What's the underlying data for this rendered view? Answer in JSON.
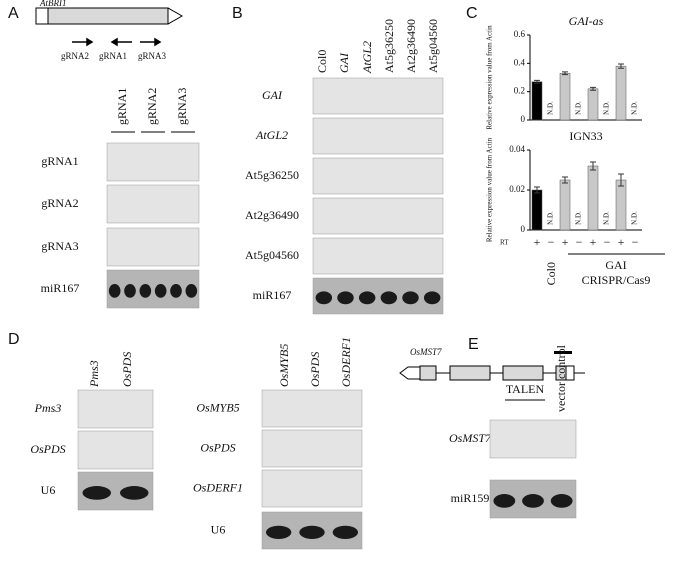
{
  "panels": {
    "A": {
      "label": "A",
      "gene": "AtBRI1",
      "grnas": [
        "gRNA2",
        "gRNA1",
        "gRNA3"
      ],
      "lanes": [
        "gRNA1",
        "gRNA2",
        "gRNA3"
      ],
      "rows": [
        "gRNA1",
        "gRNA2",
        "gRNA3",
        "miR167"
      ]
    },
    "B": {
      "label": "B",
      "lanes": [
        "Col0",
        "GAI",
        "AtGL2",
        "At5g36250",
        "At2g36490",
        "At5g04560"
      ],
      "rows": [
        "GAI",
        "AtGL2",
        "At5g36250",
        "At2g36490",
        "At5g04560",
        "miR167"
      ]
    },
    "C": {
      "label": "C",
      "ylabel": "Relative expression value from Actin",
      "chart_data": [
        {
          "type": "bar",
          "title": "GAI-as",
          "ylim": [
            0,
            0.6
          ],
          "yticks": [
            0,
            0.2,
            0.4,
            0.6
          ],
          "values": [
            0.27,
            null,
            0.33,
            null,
            0.22,
            null,
            0.38,
            null
          ],
          "value_labels": [
            null,
            "N.D.",
            null,
            "N.D.",
            null,
            "N.D.",
            null,
            "N.D."
          ],
          "errors": [
            0.01,
            null,
            0.01,
            null,
            0.01,
            null,
            0.015,
            null
          ],
          "colors": [
            "#000000",
            null,
            "#c8c8c8",
            null,
            "#c8c8c8",
            null,
            "#c8c8c8",
            null
          ]
        },
        {
          "type": "bar",
          "title": "IGN33",
          "ylim": [
            0,
            0.04
          ],
          "yticks": [
            0,
            0.02,
            0.04
          ],
          "values": [
            0.02,
            null,
            0.025,
            null,
            0.032,
            null,
            0.025,
            null
          ],
          "value_labels": [
            null,
            "N.D.",
            null,
            "N.D.",
            null,
            "N.D.",
            null,
            "N.D."
          ],
          "errors": [
            0.0015,
            null,
            0.0015,
            null,
            0.002,
            null,
            0.003,
            null
          ],
          "colors": [
            "#000000",
            null,
            "#c8c8c8",
            null,
            "#c8c8c8",
            null,
            "#c8c8c8",
            null
          ]
        }
      ],
      "categories": [
        "+",
        "−",
        "+",
        "−",
        "+",
        "−",
        "+",
        "−"
      ],
      "rt_label": "RT",
      "groups": [
        "Col0",
        "GAI",
        "CRISPR/Cas9"
      ]
    },
    "D": {
      "label": "D",
      "left": {
        "lanes": [
          "Pms3",
          "OsPDS"
        ],
        "rows": [
          "Pms3",
          "OsPDS",
          "U6"
        ]
      },
      "right": {
        "lanes": [
          "OsMYB5",
          "OsPDS",
          "OsDERF1"
        ],
        "rows": [
          "OsMYB5",
          "OsPDS",
          "OsDERF1",
          "U6"
        ]
      }
    },
    "E": {
      "label": "E",
      "gene": "OsMST7",
      "lanes": [
        "TALEN",
        "vector control"
      ],
      "rows": [
        "OsMST7",
        "miR159"
      ]
    }
  }
}
